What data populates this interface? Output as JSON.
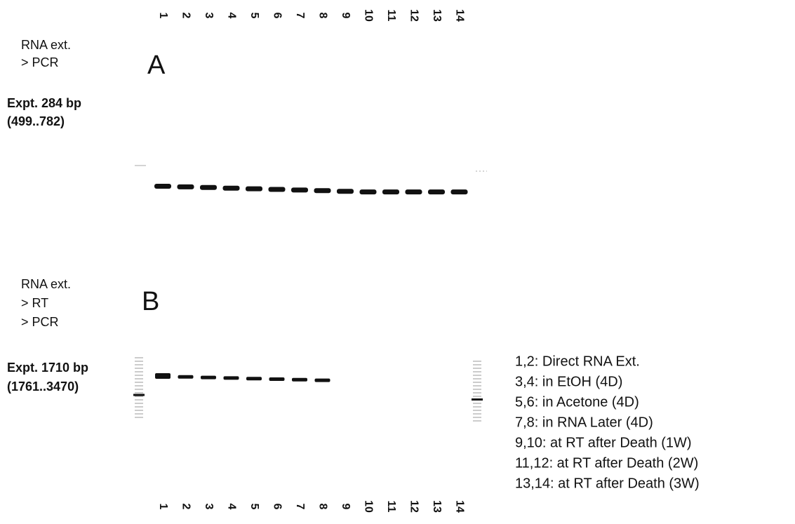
{
  "lanes_top": [
    "1",
    "2",
    "3",
    "4",
    "5",
    "6",
    "7",
    "8",
    "9",
    "10",
    "11",
    "12",
    "13",
    "14"
  ],
  "panel_a": {
    "method": [
      "RNA ext.",
      "> PCR"
    ],
    "letter": "A",
    "expected": [
      "Expt. 284 bp",
      "(499..782)"
    ]
  },
  "panel_b": {
    "method": [
      "RNA ext.",
      "> RT",
      "> PCR"
    ],
    "letter": "B",
    "expected": [
      "Expt. 1710 bp",
      "(1761..3470)"
    ]
  },
  "legend": [
    "1,2: Direct RNA Ext.",
    "3,4: in EtOH (4D)",
    "5,6: in Acetone (4D)",
    "7,8: in RNA Later (4D)",
    "9,10: at RT after Death (1W)",
    "11,12: at RT after Death (2W)",
    "13,14: at RT after Death (3W)"
  ],
  "lanes_bottom": [
    "1",
    "2",
    "3",
    "4",
    "5",
    "6",
    "7",
    "8",
    "9",
    "10",
    "11",
    "12",
    "13",
    "14"
  ]
}
